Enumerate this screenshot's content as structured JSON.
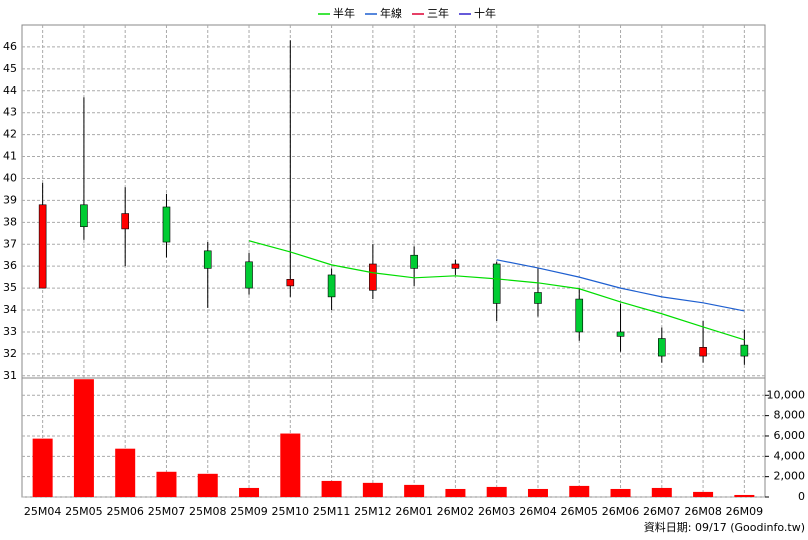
{
  "chart_data": {
    "type": "candlestick",
    "categories": [
      "25M04",
      "25M05",
      "25M06",
      "25M07",
      "25M08",
      "25M09",
      "25M10",
      "25M11",
      "25M12",
      "26M01",
      "26M02",
      "26M03",
      "26M04",
      "26M05",
      "26M06",
      "26M07",
      "26M08",
      "26M09"
    ],
    "open": [
      35.0,
      38.8,
      37.7,
      38.7,
      36.7,
      36.2,
      35.1,
      35.6,
      34.9,
      36.5,
      35.9,
      36.1,
      34.8,
      34.5,
      33.0,
      32.7,
      31.9,
      32.4
    ],
    "high": [
      39.8,
      43.7,
      39.6,
      39.3,
      37.1,
      36.6,
      46.3,
      35.9,
      37.0,
      36.9,
      36.3,
      36.2,
      35.9,
      35.0,
      34.3,
      33.2,
      33.5,
      33.1
    ],
    "low": [
      35.0,
      37.2,
      36.0,
      36.4,
      34.1,
      34.7,
      34.6,
      34.0,
      34.5,
      35.1,
      35.6,
      33.5,
      33.7,
      32.6,
      32.1,
      31.6,
      31.6,
      31.5
    ],
    "close": [
      38.8,
      37.8,
      38.4,
      37.1,
      35.9,
      35.0,
      35.4,
      34.6,
      36.1,
      35.9,
      36.1,
      34.3,
      34.3,
      33.0,
      32.8,
      31.9,
      32.3,
      31.9
    ],
    "up_color": "#ff0000",
    "down_color": "#00cc33",
    "lines": [
      {
        "name": "半年",
        "color": "#00dd00",
        "values": [
          null,
          null,
          null,
          null,
          null,
          37.16,
          36.65,
          36.06,
          35.7,
          35.47,
          35.56,
          35.42,
          35.24,
          34.97,
          34.37,
          33.83,
          33.23,
          32.64
        ]
      },
      {
        "name": "年線",
        "color": "#1e5fd0",
        "values": [
          null,
          null,
          null,
          null,
          null,
          null,
          null,
          null,
          null,
          null,
          null,
          36.29,
          35.92,
          35.5,
          35.0,
          34.6,
          34.33,
          33.96
        ]
      },
      {
        "name": "三年",
        "color": "#dd0033",
        "values": [
          null,
          null,
          null,
          null,
          null,
          null,
          null,
          null,
          null,
          null,
          null,
          null,
          null,
          null,
          null,
          null,
          null,
          null
        ]
      },
      {
        "name": "十年",
        "color": "#3322cc",
        "values": [
          null,
          null,
          null,
          null,
          null,
          null,
          null,
          null,
          null,
          null,
          null,
          null,
          null,
          null,
          null,
          null,
          null,
          null
        ]
      }
    ],
    "ylim": [
      30.9,
      47
    ],
    "yticks": [
      31,
      32,
      33,
      34,
      35,
      36,
      37,
      38,
      39,
      40,
      41,
      42,
      43,
      44,
      45,
      46
    ],
    "volume": {
      "values": [
        5740,
        11580,
        4750,
        2480,
        2280,
        890,
        6240,
        1580,
        1390,
        1190,
        790,
        990,
        790,
        1090,
        790,
        890,
        500,
        200
      ],
      "color": "#ff0000",
      "ylim": [
        0,
        11700
      ],
      "yticks": [
        0,
        {
          "value": 2000,
          "label": "2,000"
        },
        {
          "value": 4000,
          "label": "4,000"
        },
        {
          "value": 6000,
          "label": "6,000"
        },
        {
          "value": 8000,
          "label": "8,000"
        },
        {
          "value": 10000,
          "label": "10,000"
        }
      ]
    },
    "grid": true,
    "note": "資料日期: 09/17 (Goodinfo.tw)"
  }
}
